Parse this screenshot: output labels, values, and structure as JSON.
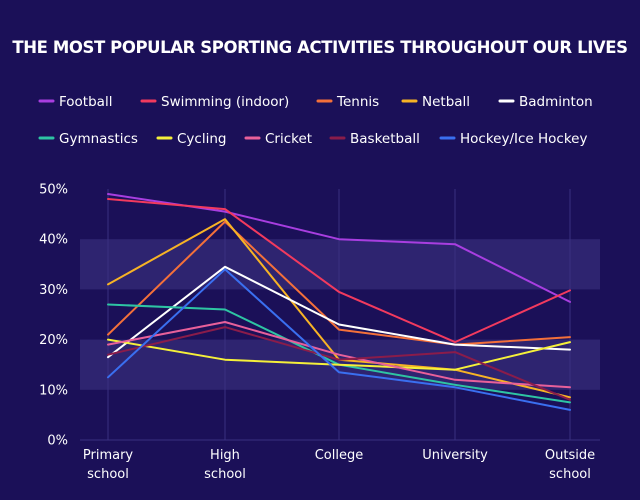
{
  "chart_data": {
    "type": "line",
    "title": "THE MOST POPULAR SPORTING ACTIVITIES THROUGHOUT OUR LIVES",
    "xlabel": "",
    "ylabel": "",
    "ylim": [
      0,
      50
    ],
    "yticks": [
      "0%",
      "10%",
      "20%",
      "30%",
      "40%",
      "50%"
    ],
    "categories": [
      [
        "Primary",
        "school"
      ],
      [
        "High",
        "school"
      ],
      [
        "College"
      ],
      [
        "University"
      ],
      [
        "Outside",
        "school"
      ]
    ],
    "legend_position": "top",
    "grid": true,
    "series": [
      {
        "name": "Football",
        "color": "#a83ee0",
        "values": [
          49,
          45.5,
          40,
          39,
          27.5
        ]
      },
      {
        "name": "Swimming (indoor)",
        "color": "#f23a5e",
        "values": [
          48,
          46,
          29.5,
          19.5,
          29.8
        ]
      },
      {
        "name": "Tennis",
        "color": "#f4703a",
        "values": [
          21,
          43.5,
          22,
          19,
          20.5
        ]
      },
      {
        "name": "Netball",
        "color": "#f7b325",
        "values": [
          31,
          44,
          16,
          14,
          8.5
        ]
      },
      {
        "name": "Badminton",
        "color": "#ffffff",
        "values": [
          16.5,
          34.5,
          23,
          19,
          18
        ]
      },
      {
        "name": "Gymnastics",
        "color": "#2ec4a3",
        "values": [
          27,
          26,
          15,
          11,
          7.5
        ]
      },
      {
        "name": "Cycling",
        "color": "#f5f03a",
        "values": [
          20,
          16,
          15,
          14,
          19.5
        ]
      },
      {
        "name": "Cricket",
        "color": "#e8609a",
        "values": [
          19,
          23.5,
          17,
          12,
          10.5
        ]
      },
      {
        "name": "Basketball",
        "color": "#8a1c4a",
        "values": [
          17,
          22.5,
          16,
          17.5,
          8
        ]
      },
      {
        "name": "Hockey/Ice Hockey",
        "color": "#3a6ff0",
        "values": [
          12.5,
          34,
          13.5,
          10.5,
          6
        ]
      }
    ]
  }
}
